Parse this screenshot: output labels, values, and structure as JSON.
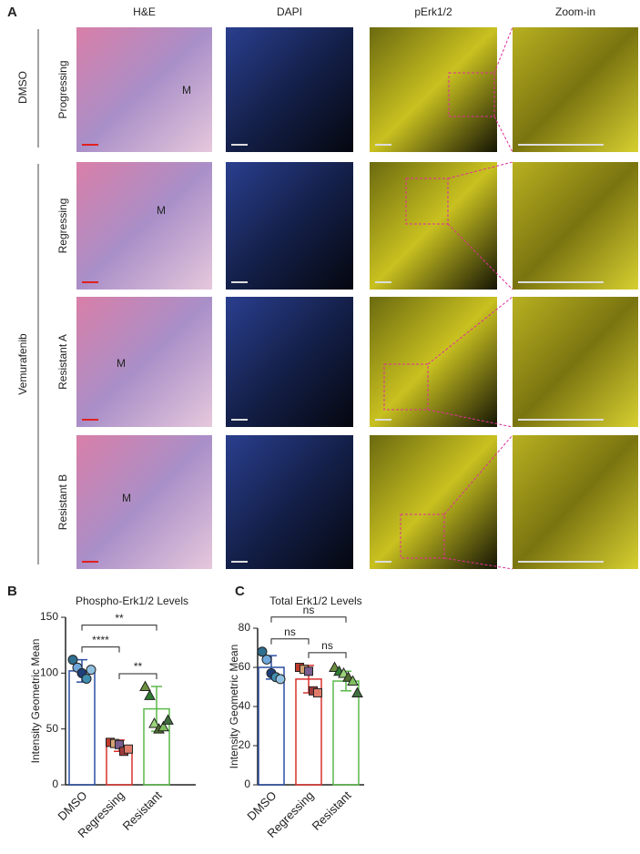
{
  "panel_a": {
    "label": "A",
    "columns": [
      "H&E",
      "DAPI",
      "pErk1/2",
      "Zoom-in"
    ],
    "groups": [
      "DMSO",
      "Vemurafenib"
    ],
    "rows": [
      "Progressing",
      "Regressing",
      "Resistant A",
      "Resistant B"
    ],
    "region_label": "M"
  },
  "chart_data": [
    {
      "type": "bar",
      "label": "B",
      "title": "Phospho-Erk1/2 Levels",
      "ylabel": "Intensity Geometric Mean",
      "categories": [
        "DMSO",
        "Regressing",
        "Resistant"
      ],
      "values": [
        102,
        35,
        68
      ],
      "errors": [
        10,
        5,
        20
      ],
      "colors": [
        "#2b4fa3",
        "#d9302c",
        "#5bb84a"
      ],
      "markers": [
        "circle",
        "square",
        "triangle"
      ],
      "points": [
        [
          112,
          105,
          100,
          95,
          103
        ],
        [
          38,
          37,
          36,
          30,
          32
        ],
        [
          88,
          80,
          55,
          50,
          52,
          58
        ]
      ],
      "point_colors": [
        [
          "#2f6f8f",
          "#6fa8dc",
          "#1f3f7a",
          "#3f8fb0",
          "#8fc0e0"
        ],
        [
          "#c0392b",
          "#d4a373",
          "#7a5c8f",
          "#a33a3a",
          "#e07b6a"
        ],
        [
          "#6b8f3f",
          "#2e7d32",
          "#9bd37a",
          "#4f6f2f",
          "#7fbf5f",
          "#3f6f3f"
        ]
      ],
      "ylim": [
        0,
        150
      ],
      "yticks": [
        0,
        50,
        100,
        150
      ],
      "annotations": [
        {
          "text": "****",
          "from": 0,
          "to": 1
        },
        {
          "text": "**",
          "from": 1,
          "to": 2
        },
        {
          "text": "**",
          "from": 0,
          "to": 2
        }
      ]
    },
    {
      "type": "bar",
      "label": "C",
      "title": "Total Erk1/2 Levels",
      "ylabel": "Intensity Geometric Mean",
      "categories": [
        "DMSO",
        "Regressing",
        "Resistant"
      ],
      "values": [
        60,
        54,
        53
      ],
      "errors": [
        6,
        7,
        5
      ],
      "colors": [
        "#2b4fa3",
        "#d9302c",
        "#5bb84a"
      ],
      "markers": [
        "circle",
        "square",
        "triangle"
      ],
      "points": [
        [
          68,
          64,
          57,
          55,
          54
        ],
        [
          60,
          59,
          58,
          48,
          47
        ],
        [
          60,
          58,
          57,
          55,
          53,
          47
        ]
      ],
      "point_colors": [
        [
          "#2f6f8f",
          "#6fa8dc",
          "#1f3f7a",
          "#3f8fb0",
          "#8fc0e0"
        ],
        [
          "#c0392b",
          "#d4a373",
          "#7a5c8f",
          "#a33a3a",
          "#e07b6a"
        ],
        [
          "#6b8f3f",
          "#2e7d32",
          "#9bd37a",
          "#4f6f2f",
          "#7fbf5f",
          "#3f6f3f"
        ]
      ],
      "ylim": [
        0,
        80
      ],
      "yticks": [
        0,
        20,
        40,
        60,
        80
      ],
      "annotations": [
        {
          "text": "ns",
          "from": 0,
          "to": 1
        },
        {
          "text": "ns",
          "from": 1,
          "to": 2
        },
        {
          "text": "ns",
          "from": 0,
          "to": 2
        }
      ]
    }
  ]
}
